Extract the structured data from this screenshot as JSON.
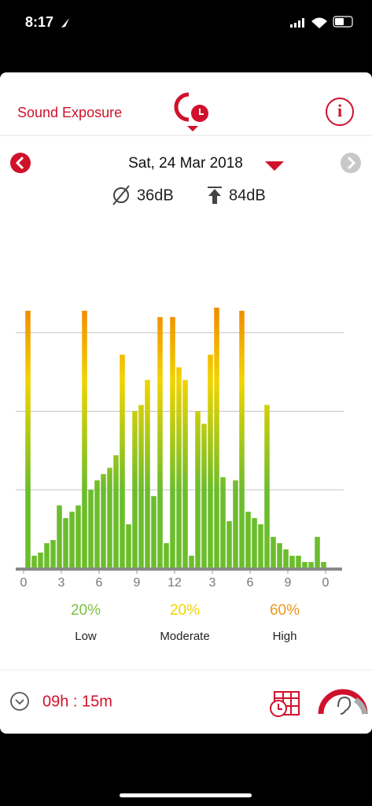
{
  "status_bar": {
    "time": "8:17"
  },
  "header": {
    "title": "Sound Exposure"
  },
  "date_bar": {
    "date": "Sat, 24 Mar 2018",
    "average": "36dB",
    "maximum": "84dB"
  },
  "chart_data": {
    "type": "histogram",
    "bins": [
      0,
      0.5,
      1,
      1.5,
      2,
      2.5,
      3,
      3.5,
      4,
      4.5,
      5,
      5.5,
      6,
      6.5,
      7,
      7.5,
      8,
      8.5,
      9,
      9.5,
      10,
      10.5,
      11,
      11.5,
      12,
      12.5,
      13,
      13.5,
      14,
      14.5,
      15,
      15.5,
      16,
      16.5,
      17,
      17.5,
      18,
      18.5,
      19,
      19.5,
      20,
      20.5,
      21,
      21.5,
      22,
      22.5,
      23,
      23.5,
      24
    ],
    "values": [
      82,
      4,
      5,
      8,
      9,
      20,
      16,
      18,
      20,
      82,
      25,
      28,
      30,
      32,
      36,
      68,
      14,
      50,
      52,
      60,
      23,
      80,
      8,
      80,
      64,
      60,
      4,
      50,
      46,
      68,
      83,
      29,
      15,
      28,
      82,
      18,
      16,
      14,
      52,
      10,
      8,
      6,
      4,
      4,
      2,
      2,
      10,
      2
    ],
    "colors": [
      "#6cbd2c",
      "#f2d400",
      "#f08a00"
    ],
    "xlim": [
      0,
      24
    ],
    "xticks": [
      0,
      3,
      6,
      9,
      12,
      {
        "value": 15,
        "label": "3"
      },
      {
        "value": 18,
        "label": "6"
      },
      {
        "value": 21,
        "label": "9"
      },
      {
        "value": 24,
        "label": "0"
      }
    ],
    "ylim": [
      0,
      100
    ],
    "yticks": [
      25,
      50,
      75
    ],
    "grid": true
  },
  "summary": [
    {
      "percent": "20%",
      "label": "Low",
      "color": "#7dc242"
    },
    {
      "percent": "20%",
      "label": "Moderate",
      "color": "#f5d400"
    },
    {
      "percent": "60%",
      "label": "High",
      "color": "#f0961e"
    }
  ],
  "footer": {
    "duration": "09h : 15m"
  }
}
